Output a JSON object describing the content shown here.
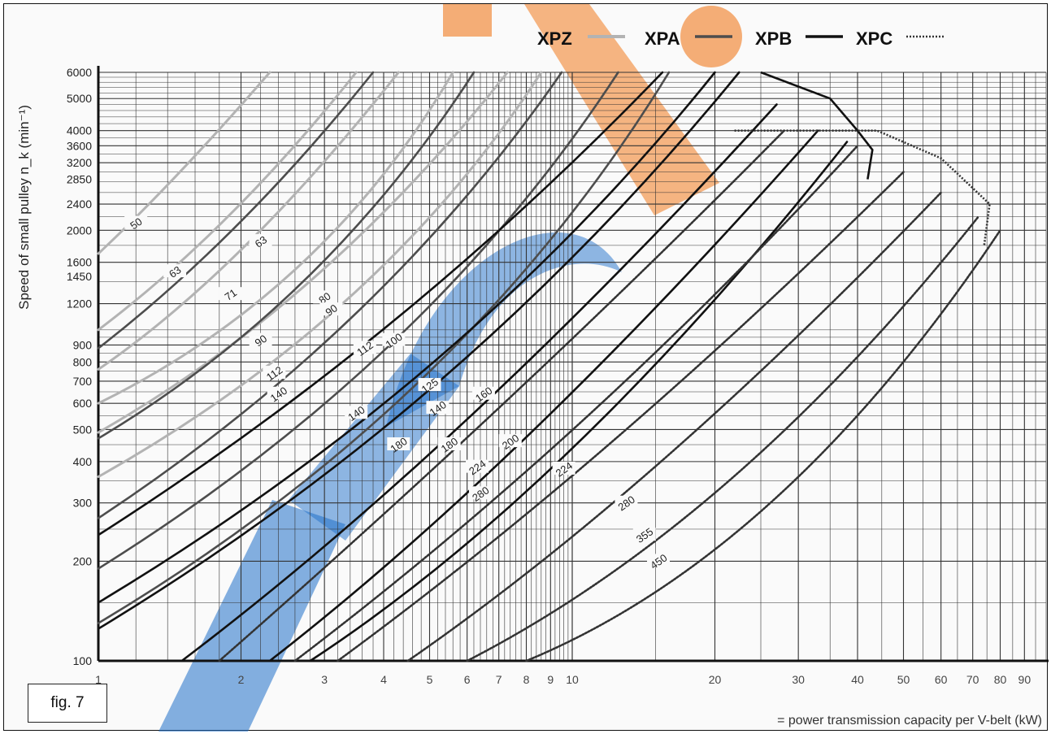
{
  "figure_label": "fig. 7",
  "legend": [
    {
      "name": "XPZ",
      "style": "light",
      "color": "#b8b8b8"
    },
    {
      "name": "XPA",
      "style": "medium",
      "color": "#555555"
    },
    {
      "name": "XPB",
      "style": "solid",
      "color": "#111111"
    },
    {
      "name": "XPC",
      "style": "dotted",
      "color": "#444444"
    }
  ],
  "colors": {
    "watermark_blue": "#1f6fc9",
    "watermark_orange": "#f07a1e",
    "grid": "#333333"
  },
  "chart_data": {
    "type": "line",
    "ylabel": "Speed of small pulley n_k (min⁻¹)",
    "xlabel": "= power transmission capacity per V-belt (kW)",
    "x_scale": "log",
    "y_scale": "log",
    "xlim": [
      1,
      100
    ],
    "ylim": [
      100,
      6000
    ],
    "x_ticks": [
      1,
      2,
      3,
      4,
      5,
      6,
      7,
      8,
      9,
      10,
      20,
      30,
      40,
      50,
      60,
      70,
      80,
      90
    ],
    "x_tick_labels": [
      "1",
      "2",
      "3",
      "4",
      "5",
      "6",
      "7",
      "8",
      "9",
      "10",
      "20",
      "30",
      "40",
      "50",
      "60",
      "70",
      "80",
      "90"
    ],
    "y_ticks": [
      100,
      200,
      300,
      400,
      500,
      600,
      700,
      800,
      900,
      1200,
      1450,
      1600,
      2000,
      2400,
      2850,
      3200,
      3600,
      4000,
      5000,
      6000
    ],
    "y_tick_labels": [
      "100",
      "200",
      "300",
      "400",
      "500",
      "600",
      "700",
      "800",
      "900",
      "1200",
      "1450",
      "1600",
      "2000",
      "2400",
      "2850",
      "3200",
      "3600",
      "4000",
      "5000",
      "6000"
    ],
    "series": [
      {
        "profile": "XPZ",
        "diameter": "50",
        "points": [
          [
            1,
            1700
          ],
          [
            1.45,
            2800
          ],
          [
            2.3,
            6000
          ]
        ]
      },
      {
        "profile": "XPZ",
        "diameter": "63",
        "points": [
          [
            1,
            1000
          ],
          [
            1.9,
            2000
          ],
          [
            3.5,
            6000
          ]
        ]
      },
      {
        "profile": "XPZ",
        "diameter": "71",
        "points": [
          [
            1,
            760
          ],
          [
            2,
            1500
          ],
          [
            4.3,
            6000
          ]
        ]
      },
      {
        "profile": "XPZ",
        "diameter": "80",
        "points": [
          [
            1,
            600
          ],
          [
            3,
            1300
          ],
          [
            5.6,
            6000
          ]
        ]
      },
      {
        "profile": "XPZ",
        "diameter": "90",
        "points": [
          [
            1,
            490
          ],
          [
            3,
            1200
          ],
          [
            7.3,
            6000
          ]
        ]
      },
      {
        "profile": "XPZ",
        "diameter": "112",
        "points": [
          [
            1,
            360
          ],
          [
            4,
            1100
          ],
          [
            8.6,
            6000
          ]
        ]
      },
      {
        "profile": "XPA",
        "diameter": "63",
        "points": [
          [
            1,
            880
          ],
          [
            2,
            1900
          ],
          [
            3.8,
            6000
          ]
        ]
      },
      {
        "profile": "XPA",
        "diameter": "90",
        "points": [
          [
            1,
            470
          ],
          [
            3,
            1200
          ],
          [
            6.2,
            6000
          ]
        ]
      },
      {
        "profile": "XPA",
        "diameter": "112",
        "points": [
          [
            1,
            270
          ],
          [
            4,
            1000
          ],
          [
            9.5,
            6000
          ]
        ]
      },
      {
        "profile": "XPA",
        "diameter": "140",
        "points": [
          [
            1,
            190
          ],
          [
            5,
            800
          ],
          [
            12.5,
            6000
          ]
        ]
      },
      {
        "profile": "XPA",
        "diameter": "180",
        "points": [
          [
            1,
            130
          ],
          [
            6,
            600
          ],
          [
            16,
            6000
          ]
        ]
      },
      {
        "profile": "XPB",
        "diameter": "100",
        "points": [
          [
            1,
            240
          ],
          [
            4.5,
            950
          ],
          [
            15.5,
            6000
          ]
        ]
      },
      {
        "profile": "XPB",
        "diameter": "125",
        "points": [
          [
            1,
            150
          ],
          [
            6,
            700
          ],
          [
            20,
            6000
          ]
        ]
      },
      {
        "profile": "XPB",
        "diameter": "140",
        "points": [
          [
            1,
            125
          ],
          [
            6,
            590
          ],
          [
            22.5,
            6000
          ]
        ]
      },
      {
        "profile": "XPB",
        "diameter": "180",
        "points": [
          [
            1.5,
            100
          ],
          [
            6,
            450
          ],
          [
            27,
            4800
          ]
        ]
      },
      {
        "profile": "XPB",
        "diameter": "224",
        "points": [
          [
            2.3,
            100
          ],
          [
            8,
            400
          ],
          [
            33,
            4000
          ]
        ]
      },
      {
        "profile": "XPB",
        "diameter": "280",
        "points": [
          [
            2.8,
            100
          ],
          [
            10,
            330
          ],
          [
            38,
            3700
          ]
        ]
      },
      {
        "profile": "XPC",
        "diameter": "160",
        "points": [
          [
            1.8,
            100
          ],
          [
            8,
            650
          ],
          [
            28,
            4000
          ]
        ]
      },
      {
        "profile": "XPC",
        "diameter": "200",
        "points": [
          [
            2.6,
            100
          ],
          [
            11,
            480
          ],
          [
            40,
            3600
          ]
        ]
      },
      {
        "profile": "XPC",
        "diameter": "224",
        "points": [
          [
            3.2,
            100
          ],
          [
            12,
            400
          ],
          [
            50,
            3000
          ]
        ]
      },
      {
        "profile": "XPC",
        "diameter": "280",
        "points": [
          [
            4.5,
            100
          ],
          [
            15,
            330
          ],
          [
            60,
            2600
          ]
        ]
      },
      {
        "profile": "XPC",
        "diameter": "355",
        "points": [
          [
            6,
            100
          ],
          [
            22,
            260
          ],
          [
            72,
            2200
          ]
        ]
      },
      {
        "profile": "XPC",
        "diameter": "450",
        "points": [
          [
            8,
            100
          ],
          [
            28,
            210
          ],
          [
            80,
            2000
          ]
        ]
      }
    ],
    "curve_labels": [
      {
        "text": "50",
        "x": 1.2,
        "y": 2100
      },
      {
        "text": "63",
        "x": 1.45,
        "y": 1500
      },
      {
        "text": "63",
        "x": 2.2,
        "y": 1850
      },
      {
        "text": "71",
        "x": 1.9,
        "y": 1280
      },
      {
        "text": "80",
        "x": 3.0,
        "y": 1250
      },
      {
        "text": "90",
        "x": 2.2,
        "y": 930
      },
      {
        "text": "90",
        "x": 3.1,
        "y": 1150
      },
      {
        "text": "112",
        "x": 2.35,
        "y": 740
      },
      {
        "text": "140",
        "x": 2.4,
        "y": 640
      },
      {
        "text": "112",
        "x": 3.65,
        "y": 880
      },
      {
        "text": "100",
        "x": 4.2,
        "y": 930
      },
      {
        "text": "140",
        "x": 3.5,
        "y": 560
      },
      {
        "text": "125",
        "x": 5.0,
        "y": 680
      },
      {
        "text": "140",
        "x": 5.2,
        "y": 580
      },
      {
        "text": "160",
        "x": 6.5,
        "y": 640
      },
      {
        "text": "180",
        "x": 4.3,
        "y": 450
      },
      {
        "text": "180",
        "x": 5.5,
        "y": 450
      },
      {
        "text": "200",
        "x": 7.4,
        "y": 460
      },
      {
        "text": "224",
        "x": 6.3,
        "y": 385
      },
      {
        "text": "224",
        "x": 9.6,
        "y": 380
      },
      {
        "text": "280",
        "x": 6.4,
        "y": 320
      },
      {
        "text": "280",
        "x": 13,
        "y": 300
      },
      {
        "text": "355",
        "x": 14.2,
        "y": 240
      },
      {
        "text": "450",
        "x": 15.2,
        "y": 200
      }
    ],
    "envelopes": [
      {
        "profile": "XPB",
        "points": [
          [
            25,
            6000
          ],
          [
            35,
            5000
          ],
          [
            40,
            4000
          ],
          [
            43,
            3500
          ],
          [
            42,
            2850
          ]
        ]
      },
      {
        "profile": "XPC",
        "points": [
          [
            22,
            4000
          ],
          [
            44,
            4000
          ],
          [
            60,
            3300
          ],
          [
            76,
            2400
          ],
          [
            74,
            1800
          ]
        ]
      }
    ]
  }
}
